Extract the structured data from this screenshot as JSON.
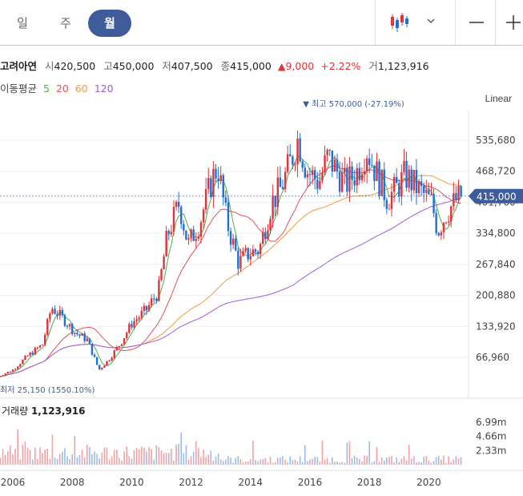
{
  "period_tabs": [
    {
      "label": "일",
      "active": false
    },
    {
      "label": "주",
      "active": false
    },
    {
      "label": "월",
      "active": true
    }
  ],
  "toolbar": {
    "chart_icon": "candlestick-icon",
    "dropdown_icon": "chevron-down-icon",
    "zoom_out_icon": "minus-icon",
    "zoom_in_icon": "plus-icon"
  },
  "stock": {
    "name": "고려아연",
    "open_label": "시",
    "open": "420,500",
    "high_label": "고",
    "high": "450,000",
    "low_label": "저",
    "low": "407,500",
    "close_label": "종",
    "close": "415,000",
    "change_symbol": "▲",
    "change": "9,000",
    "change_pct": "+2.22%",
    "volume_label": "거",
    "volume": "1,123,916"
  },
  "moving_average": {
    "label": "이동평균",
    "periods": [
      {
        "value": "5",
        "color": "#4caf50"
      },
      {
        "value": "20",
        "color": "#e8505b"
      },
      {
        "value": "60",
        "color": "#f59a3c"
      },
      {
        "value": "120",
        "color": "#9c5de0"
      }
    ]
  },
  "scale_mode": "Linear",
  "colors": {
    "up": "#e0333a",
    "down": "#1e6fd9",
    "price_tag": "#3e5b9a",
    "grid": "#eef0f2"
  },
  "chart_data": {
    "type": "candlestick",
    "y_ticks": [
      "535,680",
      "468,720",
      "401,760",
      "334,800",
      "267,840",
      "200,880",
      "133,920",
      "66,960"
    ],
    "y_tick_values": [
      535680,
      468720,
      401760,
      334800,
      267840,
      200880,
      133920,
      66960
    ],
    "x_ticks": [
      "2006",
      "2008",
      "2010",
      "2012",
      "2014",
      "2016",
      "2018",
      "2020"
    ],
    "current_price_tag": "415,000",
    "current_price": 415000,
    "high_annotation": "최고 570,000 (-27.19%)",
    "low_annotation": "최저 25,150 (1550.10%)",
    "all_time_high": 570000,
    "all_time_low": 25150,
    "price_anchors": [
      [
        2005.5,
        25150
      ],
      [
        2006.0,
        40000
      ],
      [
        2006.5,
        70000
      ],
      [
        2007.0,
        95000
      ],
      [
        2007.3,
        175000
      ],
      [
        2007.7,
        150000
      ],
      [
        2008.1,
        120000
      ],
      [
        2008.5,
        105000
      ],
      [
        2008.9,
        40000
      ],
      [
        2009.2,
        60000
      ],
      [
        2009.6,
        95000
      ],
      [
        2010.0,
        140000
      ],
      [
        2010.5,
        170000
      ],
      [
        2010.9,
        210000
      ],
      [
        2011.2,
        330000
      ],
      [
        2011.6,
        400000
      ],
      [
        2011.9,
        310000
      ],
      [
        2012.3,
        360000
      ],
      [
        2012.7,
        450000
      ],
      [
        2012.9,
        480000
      ],
      [
        2013.2,
        360000
      ],
      [
        2013.6,
        270000
      ],
      [
        2013.9,
        290000
      ],
      [
        2014.3,
        300000
      ],
      [
        2014.7,
        400000
      ],
      [
        2015.0,
        430000
      ],
      [
        2015.3,
        480000
      ],
      [
        2015.6,
        540000
      ],
      [
        2015.9,
        470000
      ],
      [
        2016.3,
        445000
      ],
      [
        2016.6,
        500000
      ],
      [
        2016.9,
        470000
      ],
      [
        2017.2,
        440000
      ],
      [
        2017.6,
        470000
      ],
      [
        2017.9,
        520000
      ],
      [
        2018.2,
        470000
      ],
      [
        2018.6,
        410000
      ],
      [
        2018.9,
        430000
      ],
      [
        2019.2,
        460000
      ],
      [
        2019.5,
        440000
      ],
      [
        2019.8,
        420000
      ],
      [
        2020.1,
        400000
      ],
      [
        2020.3,
        340000
      ],
      [
        2020.6,
        380000
      ],
      [
        2020.9,
        405000
      ],
      [
        2021.1,
        415000
      ]
    ],
    "volume": {
      "label": "거래량",
      "value": "1,123,916",
      "y_ticks": [
        "6.99m",
        "4.66m",
        "2.33m"
      ],
      "y_tick_values": [
        6990000,
        4660000,
        2330000
      ]
    }
  }
}
